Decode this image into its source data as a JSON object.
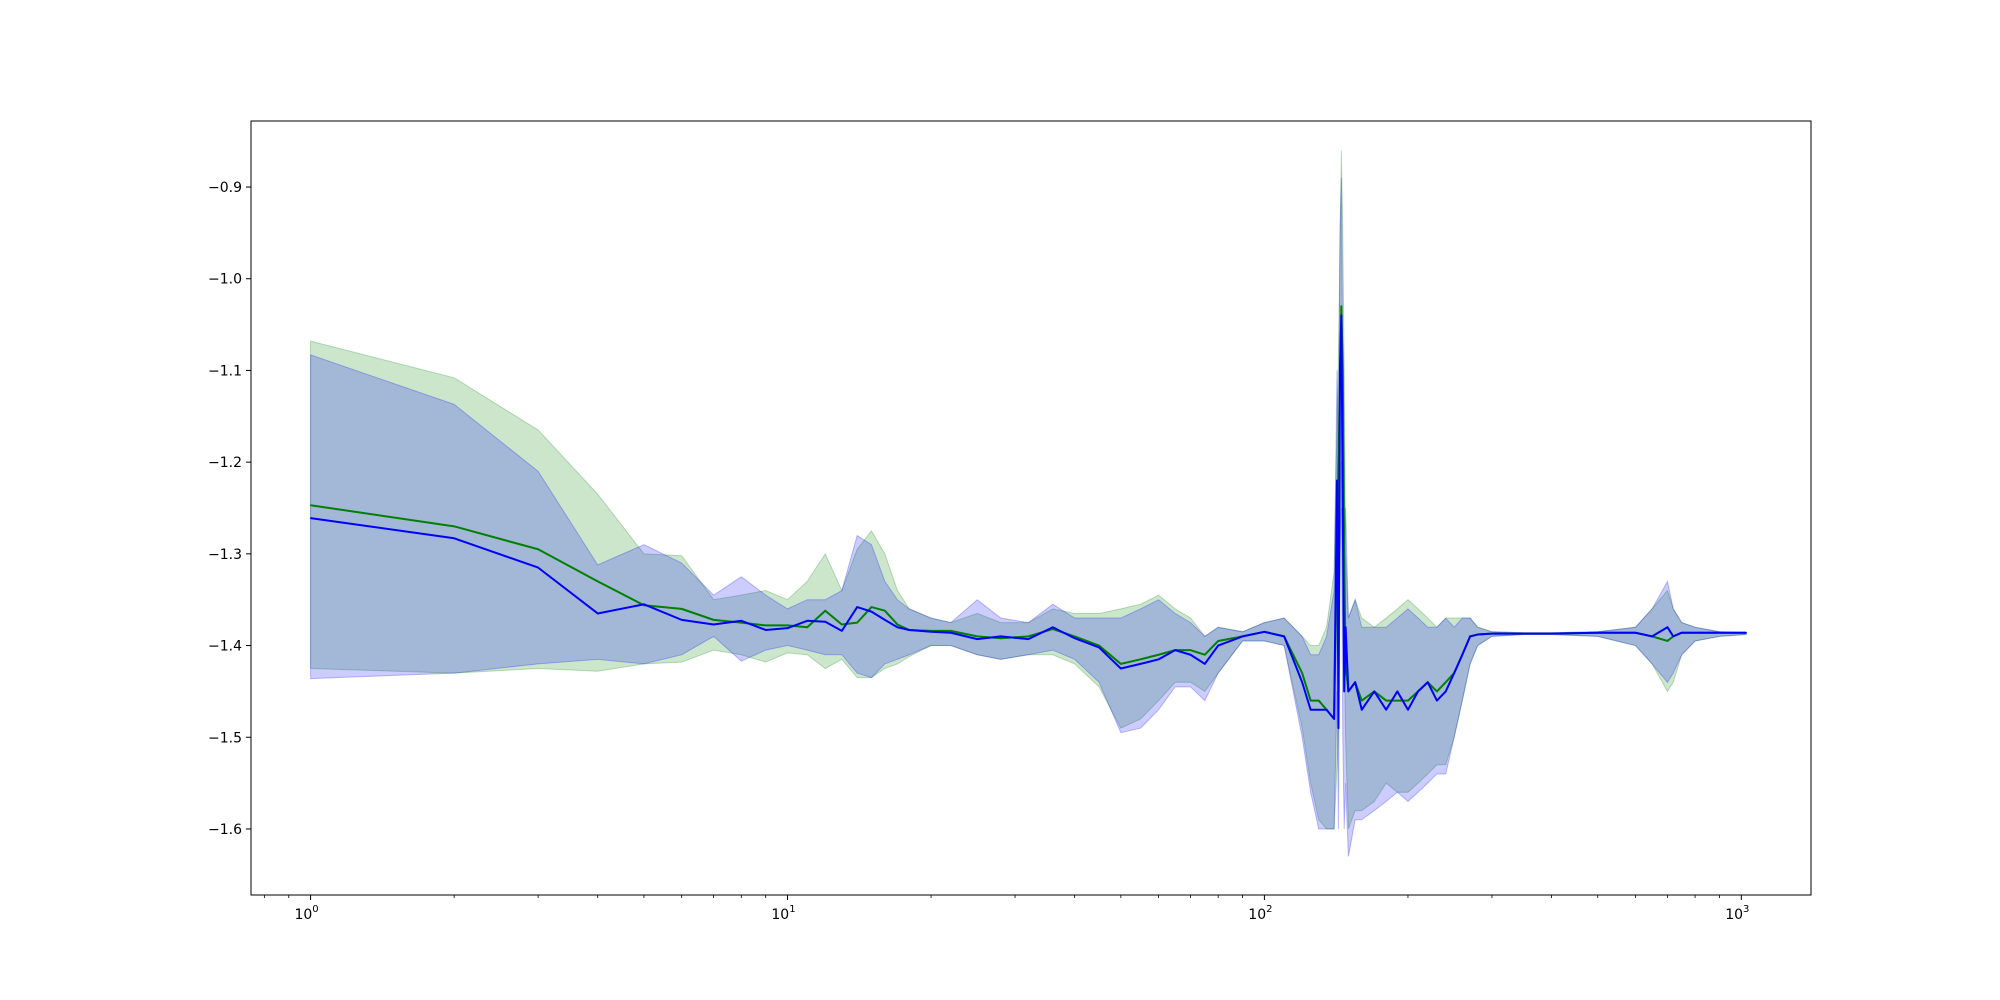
{
  "chart_data": {
    "type": "line",
    "title": "",
    "xlabel": "",
    "ylabel": "",
    "x_scale": "log",
    "xlim": [
      0.75,
      1400
    ],
    "ylim": [
      -1.672,
      -0.828
    ],
    "grid": false,
    "legend": "none",
    "x_ticks": [
      {
        "value": 1,
        "base": "10",
        "exp": "0"
      },
      {
        "value": 10,
        "base": "10",
        "exp": "1"
      },
      {
        "value": 100,
        "base": "10",
        "exp": "2"
      },
      {
        "value": 1000,
        "base": "10",
        "exp": "3"
      }
    ],
    "y_ticks": [
      {
        "value": -0.9,
        "label": "−0.9"
      },
      {
        "value": -1.0,
        "label": "−1.0"
      },
      {
        "value": -1.1,
        "label": "−1.1"
      },
      {
        "value": -1.2,
        "label": "−1.2"
      },
      {
        "value": -1.3,
        "label": "−1.3"
      },
      {
        "value": -1.4,
        "label": "−1.4"
      },
      {
        "value": -1.5,
        "label": "−1.5"
      },
      {
        "value": -1.6,
        "label": "−1.6"
      }
    ],
    "series": [
      {
        "color": "#008000",
        "fill_color": "#008000",
        "x": [
          1,
          2,
          3,
          4,
          5,
          6,
          7,
          8,
          9,
          10,
          11,
          12,
          13,
          14,
          15,
          16,
          17,
          18,
          20,
          22,
          25,
          28,
          32,
          36,
          40,
          45,
          50,
          55,
          60,
          65,
          70,
          75,
          80,
          90,
          100,
          110,
          120,
          125,
          130,
          135,
          140,
          143,
          145,
          146,
          147,
          148,
          150,
          155,
          160,
          170,
          180,
          190,
          200,
          210,
          220,
          230,
          240,
          250,
          260,
          270,
          280,
          300,
          350,
          400,
          500,
          600,
          650,
          700,
          720,
          750,
          800,
          900,
          1024
        ],
        "y": [
          -1.247,
          -1.27,
          -1.295,
          -1.33,
          -1.356,
          -1.36,
          -1.372,
          -1.375,
          -1.378,
          -1.378,
          -1.38,
          -1.362,
          -1.377,
          -1.375,
          -1.358,
          -1.362,
          -1.377,
          -1.383,
          -1.384,
          -1.384,
          -1.39,
          -1.392,
          -1.39,
          -1.382,
          -1.39,
          -1.4,
          -1.42,
          -1.415,
          -1.41,
          -1.405,
          -1.405,
          -1.41,
          -1.395,
          -1.39,
          -1.385,
          -1.39,
          -1.43,
          -1.46,
          -1.46,
          -1.47,
          -1.48,
          -1.2,
          -1.03,
          -1.1,
          -1.3,
          -1.42,
          -1.45,
          -1.44,
          -1.46,
          -1.45,
          -1.46,
          -1.46,
          -1.46,
          -1.45,
          -1.44,
          -1.45,
          -1.44,
          -1.43,
          -1.41,
          -1.39,
          -1.388,
          -1.387,
          -1.387,
          -1.387,
          -1.386,
          -1.386,
          -1.39,
          -1.395,
          -1.39,
          -1.386,
          -1.386,
          -1.386,
          -1.386
        ],
        "upper": [
          -1.068,
          -1.108,
          -1.165,
          -1.235,
          -1.3,
          -1.302,
          -1.35,
          -1.345,
          -1.34,
          -1.35,
          -1.33,
          -1.3,
          -1.34,
          -1.295,
          -1.275,
          -1.3,
          -1.34,
          -1.36,
          -1.37,
          -1.375,
          -1.365,
          -1.375,
          -1.375,
          -1.36,
          -1.365,
          -1.365,
          -1.36,
          -1.355,
          -1.345,
          -1.36,
          -1.37,
          -1.39,
          -1.38,
          -1.385,
          -1.375,
          -1.37,
          -1.39,
          -1.4,
          -1.4,
          -1.38,
          -1.32,
          -1.08,
          -0.86,
          -0.95,
          -1.1,
          -1.3,
          -1.37,
          -1.35,
          -1.37,
          -1.38,
          -1.37,
          -1.36,
          -1.35,
          -1.36,
          -1.37,
          -1.38,
          -1.37,
          -1.37,
          -1.37,
          -1.37,
          -1.38,
          -1.385,
          -1.386,
          -1.386,
          -1.385,
          -1.38,
          -1.36,
          -1.34,
          -1.36,
          -1.375,
          -1.38,
          -1.385,
          -1.386
        ],
        "lower": [
          -1.425,
          -1.43,
          -1.425,
          -1.428,
          -1.42,
          -1.418,
          -1.405,
          -1.41,
          -1.418,
          -1.408,
          -1.41,
          -1.425,
          -1.415,
          -1.435,
          -1.435,
          -1.425,
          -1.42,
          -1.412,
          -1.4,
          -1.4,
          -1.41,
          -1.415,
          -1.41,
          -1.41,
          -1.42,
          -1.445,
          -1.49,
          -1.48,
          -1.46,
          -1.44,
          -1.44,
          -1.45,
          -1.43,
          -1.395,
          -1.395,
          -1.4,
          -1.49,
          -1.55,
          -1.59,
          -1.6,
          -1.6,
          -1.5,
          -1.2,
          -1.3,
          -1.4,
          -1.5,
          -1.6,
          -1.58,
          -1.58,
          -1.57,
          -1.55,
          -1.56,
          -1.56,
          -1.55,
          -1.54,
          -1.53,
          -1.53,
          -1.5,
          -1.46,
          -1.42,
          -1.4,
          -1.39,
          -1.388,
          -1.388,
          -1.39,
          -1.4,
          -1.42,
          -1.45,
          -1.44,
          -1.41,
          -1.395,
          -1.39,
          -1.388
        ]
      },
      {
        "color": "#0000ff",
        "fill_color": "#0000ff",
        "x": [
          1,
          2,
          3,
          4,
          5,
          6,
          7,
          8,
          9,
          10,
          11,
          12,
          13,
          14,
          15,
          16,
          17,
          18,
          20,
          22,
          25,
          28,
          32,
          36,
          40,
          45,
          50,
          55,
          60,
          65,
          70,
          75,
          80,
          90,
          100,
          110,
          120,
          125,
          130,
          135,
          140,
          142,
          143,
          144,
          145,
          146,
          147,
          148,
          150,
          155,
          160,
          170,
          180,
          190,
          200,
          210,
          220,
          230,
          240,
          250,
          260,
          270,
          280,
          300,
          350,
          400,
          500,
          600,
          650,
          700,
          720,
          750,
          800,
          900,
          1024
        ],
        "y": [
          -1.261,
          -1.283,
          -1.315,
          -1.365,
          -1.355,
          -1.372,
          -1.377,
          -1.373,
          -1.383,
          -1.381,
          -1.373,
          -1.374,
          -1.384,
          -1.358,
          -1.363,
          -1.372,
          -1.38,
          -1.383,
          -1.385,
          -1.386,
          -1.393,
          -1.39,
          -1.393,
          -1.38,
          -1.392,
          -1.402,
          -1.425,
          -1.42,
          -1.415,
          -1.405,
          -1.41,
          -1.42,
          -1.4,
          -1.39,
          -1.385,
          -1.39,
          -1.44,
          -1.47,
          -1.47,
          -1.47,
          -1.48,
          -1.22,
          -1.49,
          -1.1,
          -1.04,
          -1.25,
          -1.45,
          -1.38,
          -1.45,
          -1.44,
          -1.47,
          -1.45,
          -1.47,
          -1.45,
          -1.47,
          -1.45,
          -1.44,
          -1.46,
          -1.45,
          -1.43,
          -1.41,
          -1.39,
          -1.388,
          -1.387,
          -1.387,
          -1.387,
          -1.386,
          -1.386,
          -1.39,
          -1.38,
          -1.39,
          -1.386,
          -1.386,
          -1.386,
          -1.386
        ],
        "upper": [
          -1.083,
          -1.137,
          -1.21,
          -1.312,
          -1.29,
          -1.31,
          -1.345,
          -1.325,
          -1.345,
          -1.36,
          -1.35,
          -1.35,
          -1.34,
          -1.28,
          -1.29,
          -1.33,
          -1.35,
          -1.36,
          -1.37,
          -1.375,
          -1.35,
          -1.37,
          -1.375,
          -1.355,
          -1.37,
          -1.37,
          -1.37,
          -1.36,
          -1.35,
          -1.365,
          -1.375,
          -1.39,
          -1.38,
          -1.385,
          -1.375,
          -1.37,
          -1.39,
          -1.41,
          -1.41,
          -1.39,
          -1.34,
          -1.1,
          -1.2,
          -0.95,
          -0.89,
          -1.1,
          -1.3,
          -1.25,
          -1.37,
          -1.35,
          -1.38,
          -1.38,
          -1.38,
          -1.37,
          -1.36,
          -1.37,
          -1.38,
          -1.38,
          -1.37,
          -1.38,
          -1.37,
          -1.37,
          -1.38,
          -1.385,
          -1.386,
          -1.386,
          -1.385,
          -1.38,
          -1.36,
          -1.33,
          -1.36,
          -1.375,
          -1.38,
          -1.385,
          -1.386
        ],
        "lower": [
          -1.436,
          -1.43,
          -1.42,
          -1.415,
          -1.42,
          -1.41,
          -1.39,
          -1.417,
          -1.405,
          -1.4,
          -1.405,
          -1.41,
          -1.41,
          -1.43,
          -1.435,
          -1.42,
          -1.415,
          -1.41,
          -1.4,
          -1.4,
          -1.41,
          -1.415,
          -1.41,
          -1.405,
          -1.415,
          -1.44,
          -1.495,
          -1.49,
          -1.47,
          -1.445,
          -1.445,
          -1.46,
          -1.43,
          -1.395,
          -1.395,
          -1.4,
          -1.5,
          -1.56,
          -1.6,
          -1.6,
          -1.6,
          -1.45,
          -1.6,
          -1.3,
          -1.25,
          -1.5,
          -1.6,
          -1.55,
          -1.63,
          -1.59,
          -1.59,
          -1.58,
          -1.57,
          -1.56,
          -1.57,
          -1.56,
          -1.55,
          -1.54,
          -1.54,
          -1.5,
          -1.46,
          -1.42,
          -1.4,
          -1.39,
          -1.388,
          -1.388,
          -1.39,
          -1.4,
          -1.42,
          -1.44,
          -1.43,
          -1.41,
          -1.395,
          -1.39,
          -1.388
        ]
      }
    ]
  }
}
